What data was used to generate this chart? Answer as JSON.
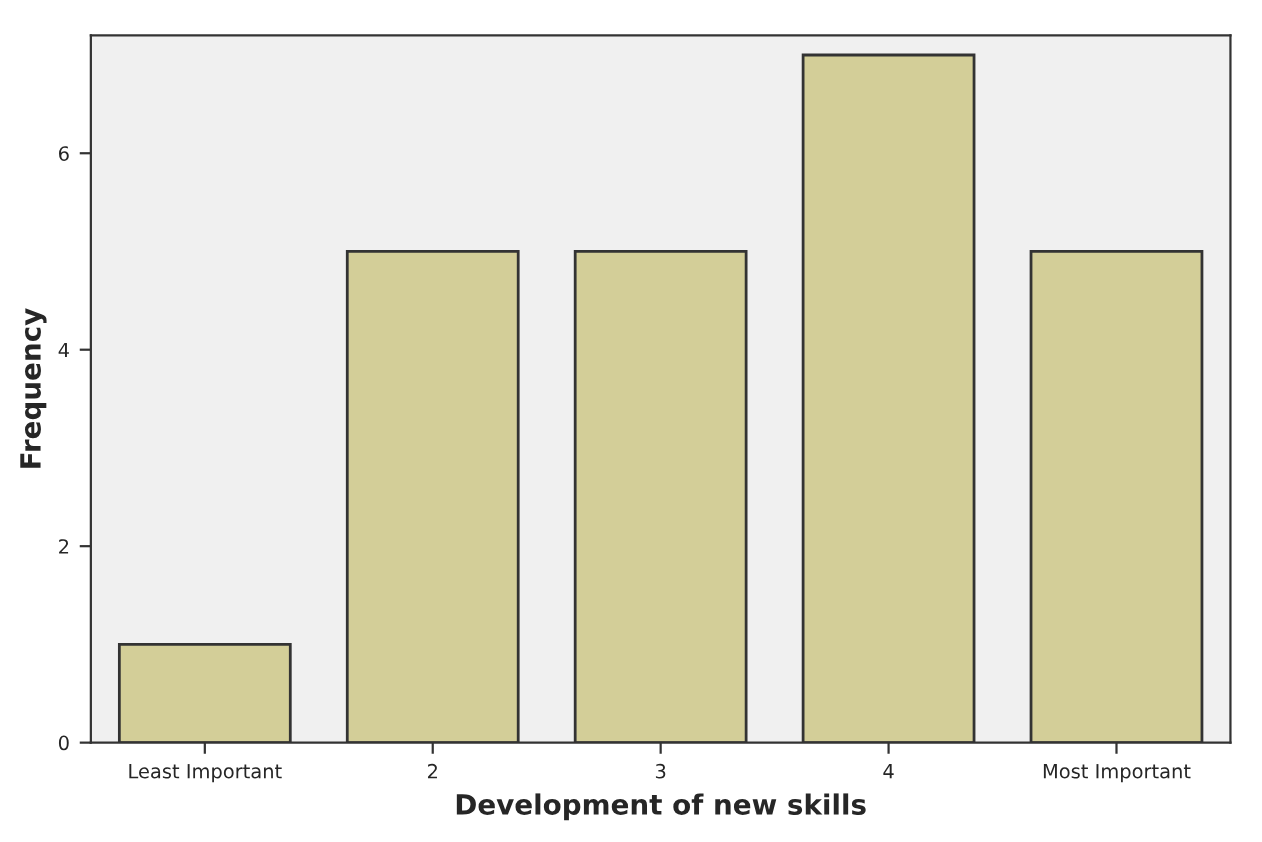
{
  "chart_data": {
    "type": "bar",
    "xlabel": "Development of new skills",
    "ylabel": "Frequency",
    "categories": [
      "Least Important",
      "2",
      "3",
      "4",
      "Most Important"
    ],
    "values": [
      1,
      5,
      5,
      7,
      5
    ],
    "color": "#d3ce98",
    "ylim": [
      0,
      7.2
    ],
    "yticks": [
      0,
      2,
      4,
      6
    ],
    "grid": false
  }
}
